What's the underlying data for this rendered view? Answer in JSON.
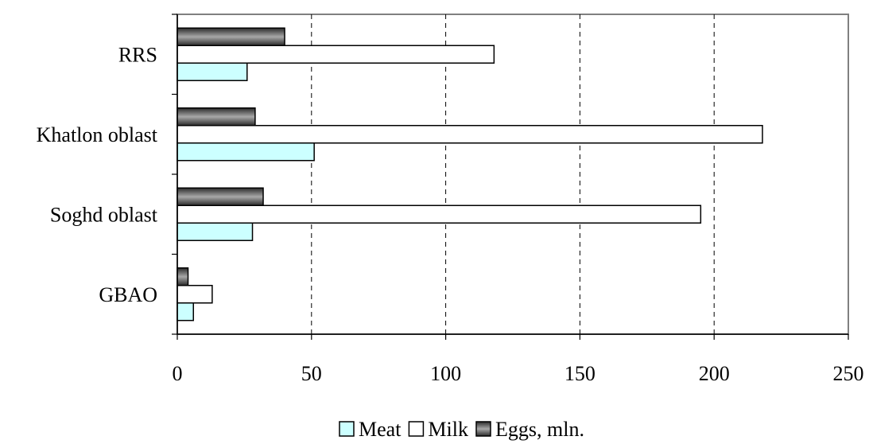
{
  "chart_data": {
    "type": "bar",
    "orientation": "horizontal",
    "categories": [
      "RRS",
      "Khatlon oblast",
      "Soghd oblast",
      "GBAO"
    ],
    "series": [
      {
        "name": "Meat",
        "values": [
          26,
          51,
          28,
          6
        ],
        "color": "#ccffff"
      },
      {
        "name": "Milk",
        "values": [
          118,
          218,
          195,
          13
        ],
        "color": "#ffffff"
      },
      {
        "name": "Eggs, mln.",
        "values": [
          40,
          29,
          32,
          4
        ],
        "color": "#555555"
      }
    ],
    "xlim": [
      0,
      250
    ],
    "xticks": [
      "0",
      "50",
      "100",
      "150",
      "200",
      "250"
    ],
    "grid": "vertical dashed",
    "legend_position": "bottom"
  }
}
